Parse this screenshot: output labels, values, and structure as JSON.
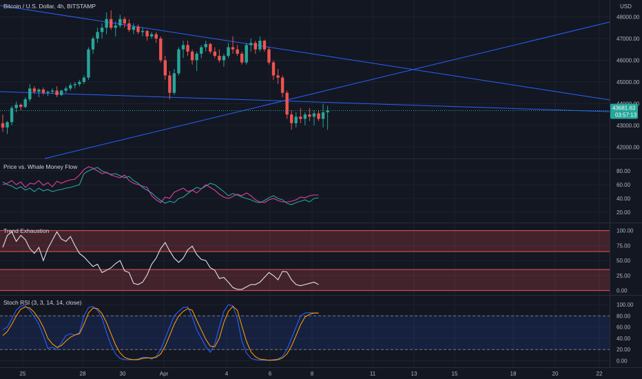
{
  "header": {
    "symbol_title": "Bitcoin / U.S. Dollar, 4h, BITSTAMP",
    "currency": "USD"
  },
  "price_tag": {
    "price": "43681.63",
    "countdown": "03:57:13"
  },
  "colors": {
    "background": "#131722",
    "up": "#26a69a",
    "down": "#ef5350",
    "trendline": "#2962ff",
    "grid": "#1e222d",
    "whale_green": "#26a69a",
    "whale_pink": "#e040a0",
    "exhaustion_line": "#e0e3eb",
    "rsi_k": "#2962ff",
    "rsi_d": "#ff9800"
  },
  "x_axis": {
    "labels": [
      "25",
      "28",
      "30",
      "Apr",
      "4",
      "6",
      "8",
      "11",
      "13",
      "15",
      "18",
      "20",
      "22"
    ]
  },
  "chart_data": [
    {
      "type": "candlestick",
      "title": "Bitcoin / U.S. Dollar, 4h, BITSTAMP",
      "y_ticks": [
        "42000.00",
        "43000.00",
        "44000.00",
        "45000.00",
        "46000.00",
        "47000.00",
        "48000.00"
      ],
      "ylim": [
        41600,
        48650
      ],
      "candles": [
        [
          43100,
          43500,
          42700,
          42900
        ],
        [
          42900,
          43200,
          42600,
          43150
        ],
        [
          43150,
          43900,
          43000,
          43800
        ],
        [
          43800,
          44100,
          43600,
          43950
        ],
        [
          43950,
          44000,
          43700,
          43850
        ],
        [
          43850,
          44300,
          43800,
          44200
        ],
        [
          44200,
          44900,
          44100,
          44700
        ],
        [
          44700,
          44800,
          44450,
          44550
        ],
        [
          44550,
          44700,
          44300,
          44650
        ],
        [
          44650,
          44750,
          44400,
          44500
        ],
        [
          44500,
          44600,
          44350,
          44550
        ],
        [
          44550,
          44700,
          44450,
          44600
        ],
        [
          44600,
          44800,
          44300,
          44400
        ],
        [
          44400,
          44650,
          44350,
          44600
        ],
        [
          44600,
          44800,
          44500,
          44700
        ],
        [
          44700,
          44950,
          44600,
          44850
        ],
        [
          44850,
          45000,
          44700,
          44900
        ],
        [
          44900,
          45100,
          44800,
          45000
        ],
        [
          45000,
          45300,
          44900,
          45200
        ],
        [
          45200,
          46600,
          45100,
          46500
        ],
        [
          46500,
          47100,
          46300,
          47000
        ],
        [
          47000,
          47500,
          46800,
          47300
        ],
        [
          47300,
          47700,
          47000,
          47500
        ],
        [
          47500,
          48200,
          47200,
          47900
        ],
        [
          47900,
          48300,
          47400,
          47500
        ],
        [
          47500,
          47800,
          47100,
          47600
        ],
        [
          47600,
          48100,
          47500,
          47900
        ],
        [
          47900,
          48000,
          47500,
          47700
        ],
        [
          47700,
          47900,
          47300,
          47400
        ],
        [
          47400,
          47700,
          47200,
          47550
        ],
        [
          47550,
          47650,
          47200,
          47300
        ],
        [
          47300,
          47500,
          47100,
          47350
        ],
        [
          47350,
          47400,
          46900,
          47100
        ],
        [
          47100,
          47300,
          47000,
          47200
        ],
        [
          47200,
          47300,
          46800,
          47000
        ],
        [
          47000,
          47100,
          45900,
          46000
        ],
        [
          46000,
          46200,
          45100,
          45300
        ],
        [
          45300,
          45500,
          44200,
          44500
        ],
        [
          44500,
          45600,
          44400,
          45400
        ],
        [
          45400,
          46600,
          45300,
          46500
        ],
        [
          46500,
          46900,
          46100,
          46700
        ],
        [
          46700,
          46900,
          46200,
          46400
        ],
        [
          46400,
          46500,
          45800,
          46000
        ],
        [
          46000,
          46400,
          45500,
          46300
        ],
        [
          46300,
          46700,
          46100,
          46600
        ],
        [
          46600,
          46900,
          46400,
          46750
        ],
        [
          46750,
          46800,
          46300,
          46400
        ],
        [
          46400,
          46600,
          46100,
          46200
        ],
        [
          46200,
          46500,
          45900,
          46000
        ],
        [
          46000,
          46300,
          45700,
          46200
        ],
        [
          46200,
          46800,
          46100,
          46600
        ],
        [
          46600,
          47100,
          46300,
          46500
        ],
        [
          46500,
          46700,
          46200,
          46300
        ],
        [
          46300,
          46400,
          45800,
          45900
        ],
        [
          45900,
          46800,
          45800,
          46700
        ],
        [
          46700,
          47000,
          46400,
          46800
        ],
        [
          46800,
          46900,
          46300,
          46500
        ],
        [
          46500,
          47100,
          46400,
          46900
        ],
        [
          46900,
          46950,
          46400,
          46500
        ],
        [
          46500,
          46600,
          45800,
          45900
        ],
        [
          45900,
          46000,
          45100,
          45300
        ],
        [
          45300,
          45600,
          44900,
          45200
        ],
        [
          45200,
          45300,
          44300,
          44500
        ],
        [
          44500,
          44600,
          43300,
          43500
        ],
        [
          43500,
          43700,
          42800,
          43100
        ],
        [
          43100,
          43600,
          42900,
          43400
        ],
        [
          43400,
          43800,
          43100,
          43300
        ],
        [
          43300,
          43600,
          43000,
          43500
        ],
        [
          43500,
          43800,
          43200,
          43400
        ],
        [
          43400,
          43700,
          43000,
          43550
        ],
        [
          43550,
          43700,
          43200,
          43300
        ],
        [
          43300,
          44000,
          42900,
          43600
        ],
        [
          43600,
          43900,
          42800,
          43681.63
        ]
      ]
    },
    {
      "type": "line",
      "title": "Price vs. Whale Money Flow",
      "y_ticks": [
        "20.00",
        "40.00",
        "60.00",
        "80.00"
      ],
      "ylim": [
        8,
        92
      ],
      "series": [
        {
          "values": [
            64,
            60,
            58,
            54,
            57,
            52,
            55,
            50,
            55,
            51,
            53,
            50,
            52,
            53,
            55,
            56,
            58,
            60,
            76,
            80,
            83,
            85,
            80,
            77,
            75,
            76,
            73,
            70,
            72,
            66,
            62,
            56,
            52,
            48,
            42,
            37,
            33,
            36,
            34,
            40,
            42,
            47,
            52,
            56,
            54,
            58,
            62,
            60,
            55,
            50,
            44,
            47,
            45,
            42,
            40,
            38,
            35,
            34,
            37,
            41,
            44,
            40,
            38,
            33,
            31,
            34,
            36,
            38,
            35,
            40,
            41
          ]
        },
        {
          "values": [
            60,
            62,
            66,
            60,
            64,
            56,
            62,
            61,
            66,
            59,
            63,
            57,
            65,
            62,
            65,
            67,
            68,
            74,
            82,
            86,
            84,
            80,
            76,
            78,
            74,
            72,
            70,
            74,
            66,
            62,
            60,
            58,
            56,
            44,
            38,
            34,
            42,
            40,
            49,
            52,
            55,
            50,
            52,
            48,
            54,
            60,
            56,
            52,
            46,
            42,
            40,
            43,
            46,
            44,
            48,
            44,
            38,
            35,
            34,
            38,
            40,
            37,
            35,
            35,
            36,
            38,
            42,
            41,
            44,
            45,
            45
          ]
        }
      ]
    },
    {
      "type": "line",
      "title": "Trend Exhaustion",
      "y_ticks": [
        "0.00",
        "25.00",
        "50.00",
        "75.00",
        "100.00"
      ],
      "ylim": [
        -5,
        103
      ],
      "bands": [
        [
          65,
          100
        ],
        [
          0,
          35
        ]
      ],
      "series": [
        {
          "values": [
            72,
            92,
            98,
            82,
            92,
            85,
            70,
            62,
            72,
            50,
            70,
            84,
            98,
            86,
            82,
            90,
            75,
            62,
            56,
            48,
            40,
            44,
            30,
            34,
            38,
            45,
            50,
            33,
            30,
            12,
            10,
            14,
            26,
            44,
            54,
            70,
            80,
            66,
            54,
            47,
            54,
            68,
            74,
            60,
            52,
            50,
            38,
            34,
            20,
            22,
            14,
            5,
            2,
            2,
            6,
            10,
            10,
            14,
            22,
            30,
            25,
            18,
            32,
            31,
            18,
            10,
            8,
            10,
            12,
            14,
            10
          ]
        }
      ]
    },
    {
      "type": "line",
      "title": "Stoch RSI (3, 3, 14, 14, close)",
      "y_ticks": [
        "0.00",
        "20.00",
        "40.00",
        "60.00",
        "80.00",
        "100.00"
      ],
      "ylim": [
        -8,
        110
      ],
      "bands": [
        [
          20,
          80
        ]
      ],
      "series": [
        {
          "values": [
            55,
            60,
            75,
            90,
            98,
            98,
            90,
            78,
            65,
            45,
            22,
            24,
            20,
            32,
            45,
            48,
            46,
            50,
            80,
            95,
            97,
            90,
            76,
            50,
            28,
            12,
            4,
            2,
            2,
            2,
            3,
            6,
            6,
            3,
            8,
            20,
            40,
            60,
            80,
            88,
            95,
            96,
            78,
            55,
            40,
            25,
            15,
            30,
            60,
            88,
            100,
            98,
            75,
            35,
            14,
            4,
            2,
            1,
            1,
            1,
            2,
            3,
            8,
            20,
            40,
            60,
            80,
            85,
            86,
            85,
            85
          ]
        },
        {
          "values": [
            45,
            52,
            65,
            80,
            92,
            96,
            94,
            86,
            75,
            60,
            40,
            30,
            24,
            27,
            35,
            42,
            46,
            48,
            65,
            85,
            94,
            93,
            84,
            68,
            48,
            28,
            14,
            6,
            3,
            2,
            2,
            4,
            5,
            5,
            6,
            12,
            26,
            45,
            65,
            80,
            88,
            93,
            90,
            72,
            55,
            38,
            26,
            25,
            40,
            68,
            88,
            97,
            90,
            62,
            35,
            16,
            7,
            3,
            2,
            1,
            1,
            2,
            5,
            12,
            26,
            45,
            64,
            78,
            83,
            85,
            85
          ]
        }
      ]
    }
  ]
}
